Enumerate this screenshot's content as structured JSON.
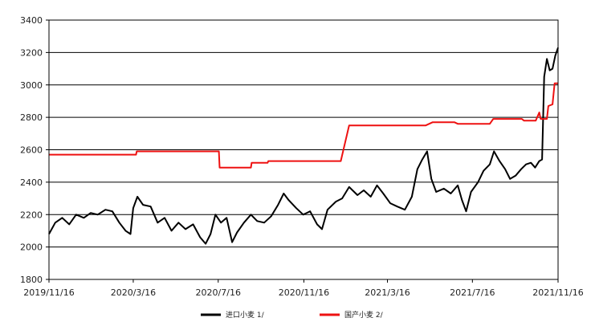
{
  "chart_data": {
    "type": "line",
    "title": "",
    "xlabel": "",
    "ylabel": "",
    "ylim": [
      1800,
      3400
    ],
    "yticks": [
      1800,
      2000,
      2200,
      2400,
      2600,
      2800,
      3000,
      3200,
      3400
    ],
    "xlim": [
      "2019/11/16",
      "2021/11/16"
    ],
    "xticks": [
      "2019/11/16",
      "2020/3/16",
      "2020/7/16",
      "2020/11/16",
      "2021/3/16",
      "2021/7/16",
      "2021/11/16"
    ],
    "grid": "horizontal",
    "legend_position": "bottom",
    "series": [
      {
        "name": "进口小麦 1/",
        "color": "#000000",
        "points": [
          [
            "2019/11/16",
            2080
          ],
          [
            "2019/11/25",
            2150
          ],
          [
            "2019/12/5",
            2180
          ],
          [
            "2019/12/15",
            2140
          ],
          [
            "2019/12/25",
            2200
          ],
          [
            "2020/1/5",
            2180
          ],
          [
            "2020/1/15",
            2210
          ],
          [
            "2020/1/25",
            2200
          ],
          [
            "2020/2/5",
            2230
          ],
          [
            "2020/2/15",
            2220
          ],
          [
            "2020/2/25",
            2150
          ],
          [
            "2020/3/5",
            2100
          ],
          [
            "2020/3/12",
            2080
          ],
          [
            "2020/3/16",
            2240
          ],
          [
            "2020/3/22",
            2310
          ],
          [
            "2020/3/30",
            2260
          ],
          [
            "2020/4/10",
            2250
          ],
          [
            "2020/4/20",
            2150
          ],
          [
            "2020/4/30",
            2180
          ],
          [
            "2020/5/10",
            2100
          ],
          [
            "2020/5/20",
            2150
          ],
          [
            "2020/5/30",
            2110
          ],
          [
            "2020/6/10",
            2140
          ],
          [
            "2020/6/20",
            2060
          ],
          [
            "2020/6/28",
            2020
          ],
          [
            "2020/7/5",
            2080
          ],
          [
            "2020/7/12",
            2200
          ],
          [
            "2020/7/20",
            2150
          ],
          [
            "2020/7/28",
            2180
          ],
          [
            "2020/8/5",
            2030
          ],
          [
            "2020/8/12",
            2090
          ],
          [
            "2020/8/22",
            2150
          ],
          [
            "2020/9/1",
            2200
          ],
          [
            "2020/9/10",
            2160
          ],
          [
            "2020/9/20",
            2150
          ],
          [
            "2020/9/30",
            2190
          ],
          [
            "2020/10/10",
            2260
          ],
          [
            "2020/10/18",
            2330
          ],
          [
            "2020/10/25",
            2290
          ],
          [
            "2020/11/5",
            2240
          ],
          [
            "2020/11/15",
            2200
          ],
          [
            "2020/11/25",
            2220
          ],
          [
            "2020/12/5",
            2140
          ],
          [
            "2020/12/12",
            2110
          ],
          [
            "2020/12/20",
            2230
          ],
          [
            "2021/1/1",
            2280
          ],
          [
            "2021/1/10",
            2300
          ],
          [
            "2021/1/20",
            2370
          ],
          [
            "2021/2/1",
            2320
          ],
          [
            "2021/2/10",
            2350
          ],
          [
            "2021/2/20",
            2310
          ],
          [
            "2021/3/1",
            2380
          ],
          [
            "2021/3/10",
            2330
          ],
          [
            "2021/3/20",
            2270
          ],
          [
            "2021/3/30",
            2250
          ],
          [
            "2021/4/10",
            2230
          ],
          [
            "2021/4/20",
            2310
          ],
          [
            "2021/4/28",
            2480
          ],
          [
            "2021/5/5",
            2540
          ],
          [
            "2021/5/12",
            2590
          ],
          [
            "2021/5/18",
            2420
          ],
          [
            "2021/5/25",
            2340
          ],
          [
            "2021/6/5",
            2360
          ],
          [
            "2021/6/15",
            2330
          ],
          [
            "2021/6/25",
            2380
          ],
          [
            "2021/7/1",
            2290
          ],
          [
            "2021/7/7",
            2220
          ],
          [
            "2021/7/14",
            2340
          ],
          [
            "2021/7/24",
            2400
          ],
          [
            "2021/8/1",
            2470
          ],
          [
            "2021/8/10",
            2510
          ],
          [
            "2021/8/16",
            2590
          ],
          [
            "2021/8/24",
            2530
          ],
          [
            "2021/9/1",
            2480
          ],
          [
            "2021/9/8",
            2420
          ],
          [
            "2021/9/16",
            2440
          ],
          [
            "2021/9/24",
            2480
          ],
          [
            "2021/10/1",
            2510
          ],
          [
            "2021/10/8",
            2520
          ],
          [
            "2021/10/14",
            2490
          ],
          [
            "2021/10/20",
            2530
          ],
          [
            "2021/10/24",
            2540
          ],
          [
            "2021/10/27",
            3050
          ],
          [
            "2021/10/31",
            3160
          ],
          [
            "2021/11/4",
            3090
          ],
          [
            "2021/11/8",
            3100
          ],
          [
            "2021/11/12",
            3180
          ],
          [
            "2021/11/16",
            3230
          ]
        ]
      },
      {
        "name": "国产小麦 2/",
        "color": "#ee1111",
        "points": [
          [
            "2019/11/16",
            2570
          ],
          [
            "2020/3/20",
            2570
          ],
          [
            "2020/3/21",
            2590
          ],
          [
            "2020/7/17",
            2590
          ],
          [
            "2020/7/18",
            2490
          ],
          [
            "2020/9/1",
            2490
          ],
          [
            "2020/9/2",
            2520
          ],
          [
            "2020/9/25",
            2520
          ],
          [
            "2020/9/26",
            2530
          ],
          [
            "2021/1/8",
            2530
          ],
          [
            "2021/1/20",
            2750
          ],
          [
            "2021/5/10",
            2750
          ],
          [
            "2021/5/20",
            2770
          ],
          [
            "2021/6/20",
            2770
          ],
          [
            "2021/6/25",
            2760
          ],
          [
            "2021/8/10",
            2760
          ],
          [
            "2021/8/15",
            2790
          ],
          [
            "2021/9/25",
            2790
          ],
          [
            "2021/9/28",
            2780
          ],
          [
            "2021/10/15",
            2780
          ],
          [
            "2021/10/20",
            2830
          ],
          [
            "2021/10/22",
            2790
          ],
          [
            "2021/10/31",
            2790
          ],
          [
            "2021/11/2",
            2870
          ],
          [
            "2021/11/8",
            2880
          ],
          [
            "2021/11/11",
            3010
          ],
          [
            "2021/11/16",
            3010
          ]
        ]
      }
    ]
  }
}
